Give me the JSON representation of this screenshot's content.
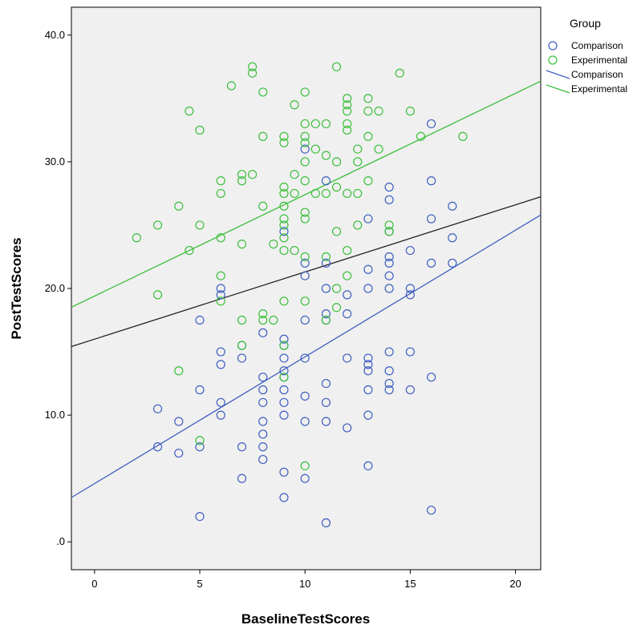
{
  "chart_data": {
    "type": "scatter",
    "xlabel": "BaselineTestScores",
    "ylabel": "PostTestScores",
    "xlim": [
      -1.1,
      21.2
    ],
    "ylim": [
      -2.2,
      42.2
    ],
    "x_ticks": [
      0,
      5,
      10,
      15,
      20
    ],
    "x_tick_labels": [
      "0",
      "5",
      "10",
      "15",
      "20"
    ],
    "y_ticks": [
      0,
      10,
      20,
      30,
      40
    ],
    "y_tick_labels": [
      ".0",
      "10.0",
      "20.0",
      "30.0",
      "40.0"
    ],
    "grid": false,
    "legend": {
      "title": "Group",
      "position": "right",
      "entries": [
        {
          "label": "Comparison",
          "kind": "marker",
          "color": "#3f5fc0"
        },
        {
          "label": "Experimental",
          "kind": "marker",
          "color": "#3cbf3c"
        },
        {
          "label": "Comparison",
          "kind": "line",
          "color": "#3f5fc0"
        },
        {
          "label": "Experimental",
          "kind": "line",
          "color": "#3cbf3c"
        }
      ]
    },
    "series": [
      {
        "name": "Comparison",
        "color": "#3f5fc0",
        "points": [
          [
            3,
            10.5
          ],
          [
            3,
            7.5
          ],
          [
            4,
            9.5
          ],
          [
            4,
            7
          ],
          [
            5,
            17.5
          ],
          [
            5,
            12
          ],
          [
            5,
            7.5
          ],
          [
            5,
            2
          ],
          [
            6,
            20
          ],
          [
            6,
            19.5
          ],
          [
            6,
            15
          ],
          [
            6,
            14
          ],
          [
            6,
            11
          ],
          [
            6,
            10
          ],
          [
            7,
            15.5
          ],
          [
            7,
            14.5
          ],
          [
            7,
            7.5
          ],
          [
            7,
            5
          ],
          [
            8,
            16.5
          ],
          [
            8,
            13
          ],
          [
            8,
            12
          ],
          [
            8,
            11
          ],
          [
            8,
            9.5
          ],
          [
            8,
            8.5
          ],
          [
            8,
            7.5
          ],
          [
            8,
            6.5
          ],
          [
            9,
            24.5
          ],
          [
            9,
            16
          ],
          [
            9,
            15.5
          ],
          [
            9,
            14.5
          ],
          [
            9,
            13.5
          ],
          [
            9,
            13
          ],
          [
            9,
            12
          ],
          [
            9,
            11
          ],
          [
            9,
            10
          ],
          [
            9,
            5.5
          ],
          [
            9,
            3.5
          ],
          [
            10,
            31
          ],
          [
            10,
            22
          ],
          [
            10,
            21
          ],
          [
            10,
            17.5
          ],
          [
            10,
            14.5
          ],
          [
            10,
            11.5
          ],
          [
            10,
            9.5
          ],
          [
            10,
            5
          ],
          [
            11,
            28.5
          ],
          [
            11,
            22
          ],
          [
            11,
            20
          ],
          [
            11,
            18
          ],
          [
            11,
            17.5
          ],
          [
            11,
            12.5
          ],
          [
            11,
            11
          ],
          [
            11,
            9.5
          ],
          [
            11,
            1.5
          ],
          [
            12,
            19.5
          ],
          [
            12,
            18
          ],
          [
            12,
            14.5
          ],
          [
            12,
            9
          ],
          [
            13,
            25.5
          ],
          [
            13,
            21.5
          ],
          [
            13,
            20
          ],
          [
            13,
            14.5
          ],
          [
            13,
            14
          ],
          [
            13,
            13.5
          ],
          [
            13,
            12
          ],
          [
            13,
            10
          ],
          [
            13,
            6
          ],
          [
            14,
            28
          ],
          [
            14,
            27
          ],
          [
            14,
            24.5
          ],
          [
            14,
            22.5
          ],
          [
            14,
            22
          ],
          [
            14,
            21
          ],
          [
            14,
            20
          ],
          [
            14,
            15
          ],
          [
            14,
            13.5
          ],
          [
            14,
            12.5
          ],
          [
            14,
            12
          ],
          [
            15,
            23
          ],
          [
            15,
            20
          ],
          [
            15,
            19.5
          ],
          [
            15,
            15
          ],
          [
            15,
            12
          ],
          [
            16,
            33
          ],
          [
            16,
            28.5
          ],
          [
            16,
            25.5
          ],
          [
            16,
            22
          ],
          [
            16,
            13
          ],
          [
            16,
            2.5
          ],
          [
            17,
            26.5
          ],
          [
            17,
            24
          ],
          [
            17,
            22
          ]
        ]
      },
      {
        "name": "Experimental",
        "color": "#3cbf3c",
        "points": [
          [
            2,
            24
          ],
          [
            3,
            25
          ],
          [
            3,
            19.5
          ],
          [
            4,
            26.5
          ],
          [
            4,
            13.5
          ],
          [
            4.5,
            34
          ],
          [
            4.5,
            23
          ],
          [
            5,
            32.5
          ],
          [
            5,
            25
          ],
          [
            5,
            8
          ],
          [
            6,
            28.5
          ],
          [
            6,
            27.5
          ],
          [
            6,
            24
          ],
          [
            6,
            21
          ],
          [
            6,
            19
          ],
          [
            6.5,
            36
          ],
          [
            7,
            29
          ],
          [
            7,
            28.5
          ],
          [
            7,
            23.5
          ],
          [
            7,
            17.5
          ],
          [
            7,
            15.5
          ],
          [
            7.5,
            37.5
          ],
          [
            7.5,
            37
          ],
          [
            7.5,
            29
          ],
          [
            8,
            35.5
          ],
          [
            8,
            32
          ],
          [
            8,
            26.5
          ],
          [
            8,
            18
          ],
          [
            8,
            17.5
          ],
          [
            8.5,
            23.5
          ],
          [
            8.5,
            17.5
          ],
          [
            9,
            32
          ],
          [
            9,
            31.5
          ],
          [
            9,
            28
          ],
          [
            9,
            27.5
          ],
          [
            9,
            26.5
          ],
          [
            9,
            25.5
          ],
          [
            9,
            25
          ],
          [
            9,
            24
          ],
          [
            9,
            23
          ],
          [
            9,
            19
          ],
          [
            9,
            15.5
          ],
          [
            9,
            13
          ],
          [
            9.5,
            34.5
          ],
          [
            9.5,
            29
          ],
          [
            9.5,
            27.5
          ],
          [
            9.5,
            23
          ],
          [
            10,
            35.5
          ],
          [
            10,
            33
          ],
          [
            10,
            32
          ],
          [
            10,
            31.5
          ],
          [
            10,
            30
          ],
          [
            10,
            28.5
          ],
          [
            10,
            26
          ],
          [
            10,
            25.5
          ],
          [
            10,
            22.5
          ],
          [
            10,
            19
          ],
          [
            10,
            6
          ],
          [
            10.5,
            33
          ],
          [
            10.5,
            31
          ],
          [
            10.5,
            27.5
          ],
          [
            11,
            33
          ],
          [
            11,
            30.5
          ],
          [
            11,
            27.5
          ],
          [
            11,
            22.5
          ],
          [
            11,
            17.5
          ],
          [
            11.5,
            37.5
          ],
          [
            11.5,
            30
          ],
          [
            11.5,
            28
          ],
          [
            11.5,
            24.5
          ],
          [
            11.5,
            20
          ],
          [
            11.5,
            18.5
          ],
          [
            12,
            35
          ],
          [
            12,
            34.5
          ],
          [
            12,
            34
          ],
          [
            12,
            33
          ],
          [
            12,
            32.5
          ],
          [
            12,
            27.5
          ],
          [
            12,
            23
          ],
          [
            12,
            21
          ],
          [
            12.5,
            31
          ],
          [
            12.5,
            30
          ],
          [
            12.5,
            27.5
          ],
          [
            12.5,
            25
          ],
          [
            13,
            35
          ],
          [
            13,
            34
          ],
          [
            13,
            32
          ],
          [
            13,
            28.5
          ],
          [
            13.5,
            34
          ],
          [
            13.5,
            31
          ],
          [
            14,
            25
          ],
          [
            14,
            24.5
          ],
          [
            14.5,
            37
          ],
          [
            15,
            34
          ],
          [
            15.5,
            32
          ],
          [
            17.5,
            32
          ]
        ]
      }
    ],
    "fit_lines": [
      {
        "group": "Comparison",
        "color": "#3f5fc0",
        "intercept": 4.6,
        "slope": 1.0
      },
      {
        "group": "Experimental",
        "color": "#3cbf3c",
        "intercept": 19.4,
        "slope": 0.8
      },
      {
        "group": "total",
        "color": "#222222",
        "intercept": 16.0,
        "slope": 0.53
      }
    ]
  }
}
